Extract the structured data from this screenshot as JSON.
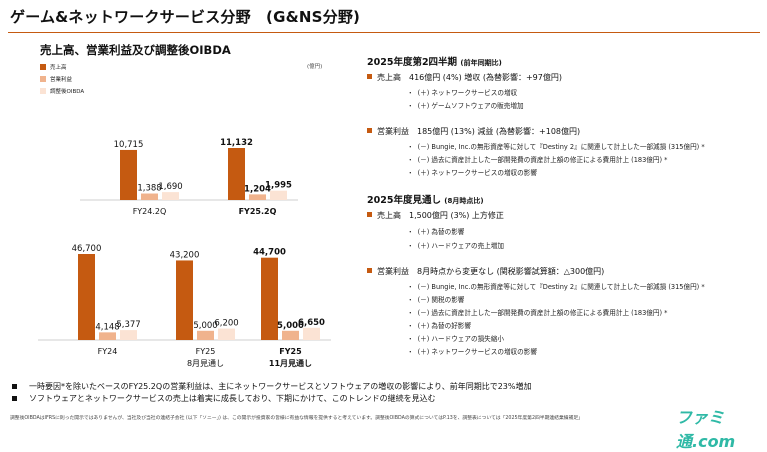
{
  "slide": {
    "title": "ゲーム&ネットワークサービス分野　(G&NS分野)",
    "left_title": "売上高、営業利益及び調整後OIBDA",
    "unit": "(億円)"
  },
  "legend": [
    {
      "label": "売上高",
      "color": "#c55a11"
    },
    {
      "label": "営業利益",
      "color": "#f0b38d"
    },
    {
      "label": "調整後OIBDA",
      "color": "#fbe3d4"
    }
  ],
  "chart_data": [
    {
      "type": "bar",
      "categories": [
        "FY24.2Q",
        "FY25.2Q"
      ],
      "series": [
        {
          "name": "売上高",
          "values": [
            10715,
            11132
          ]
        },
        {
          "name": "営業利益",
          "values": [
            1388,
            1204
          ]
        },
        {
          "name": "調整後OIBDA",
          "values": [
            1690,
            1995
          ]
        }
      ],
      "value_labels": [
        [
          "10,715",
          "1,388",
          "1,690"
        ],
        [
          "11,132",
          "1,204",
          "1,995"
        ]
      ],
      "bold_category": "FY25.2Q"
    },
    {
      "type": "bar",
      "categories": [
        "FY24",
        "FY25 8月見通し",
        "FY25 11月見通し"
      ],
      "series": [
        {
          "name": "売上高",
          "values": [
            46700,
            43200,
            44700
          ]
        },
        {
          "name": "営業利益",
          "values": [
            4148,
            5000,
            5000
          ]
        },
        {
          "name": "調整後OIBDA",
          "values": [
            5377,
            6200,
            6650
          ]
        }
      ],
      "value_labels": [
        [
          "46,700",
          "4,148",
          "5,377"
        ],
        [
          "43,200",
          "5,000",
          "6,200"
        ],
        [
          "44,700",
          "5,000",
          "6,650"
        ]
      ],
      "category_labels": [
        [
          "FY24"
        ],
        [
          "FY25",
          "8月見通し"
        ],
        [
          "FY25",
          "11月見通し"
        ]
      ],
      "bold_category": "FY25 11月見通し"
    }
  ],
  "right": {
    "s1_title": "2025年度第2四半期",
    "s1_sub": "(前年同期比)",
    "s1_b1": "売上高　416億円 (4%) 増収 (為替影響：+97億円)",
    "s1_b1_items": [
      "(＋) ネットワークサービスの増収",
      "(＋) ゲームソフトウェアの販売増加"
    ],
    "s1_b2": "営業利益　185億円 (13%) 減益 (為替影響：+108億円)",
    "s1_b2_items": [
      "(－) Bungie, Inc.の無形資産等に対して『Destiny 2』に関連して計上した一部減損 (315億円) *",
      "(－) 過去に資産計上した一部開発費の資産計上額の修正による費用計上 (183億円) *",
      "(＋) ネットワークサービスの増収の影響"
    ],
    "s2_title": "2025年度見通し",
    "s2_sub": "(8月時点比)",
    "s2_b1": "売上高　1,500億円 (3%) 上方修正",
    "s2_b1_items": [
      "(＋) 為替の影響",
      "(＋) ハードウェアの売上増加"
    ],
    "s2_b2": "営業利益　8月時点から変更なし (関税影響試算額：△300億円)",
    "s2_b2_items": [
      "(－) Bungie, Inc.の無形資産等に対して『Destiny 2』に関連して計上した一部減損 (315億円) *",
      "(－) 関税の影響",
      "(－) 過去に資産計上した一部開発費の資産計上額の修正による費用計上 (183億円) *",
      "(＋) 為替の好影響",
      "(＋) ハードウェアの損失縮小",
      "(＋) ネットワークサービスの増収の影響"
    ]
  },
  "footer": {
    "b1": "一時要因*を除いたベースのFY25.2Qの営業利益は、主にネットワークサービスとソフトウェアの増収の影響により、前年同期比で23%増加",
    "b2": "ソフトウェアとネットワークサービスの売上は着実に成長しており、下期にかけて、このトレンドの継続を見込む",
    "footnote": "調整後OIBDAはIFRSに則った開示ではありませんが、当社及び当社の連結子会社 (以下「ソニー」) は、この開示が投資家の皆様に有益な情報を提供すると考えています。調整後OIBDAの算式についてはP.13を、調整表については「2025年度第2四半期連結業績補足」",
    "watermark": "ファミ通.com"
  }
}
